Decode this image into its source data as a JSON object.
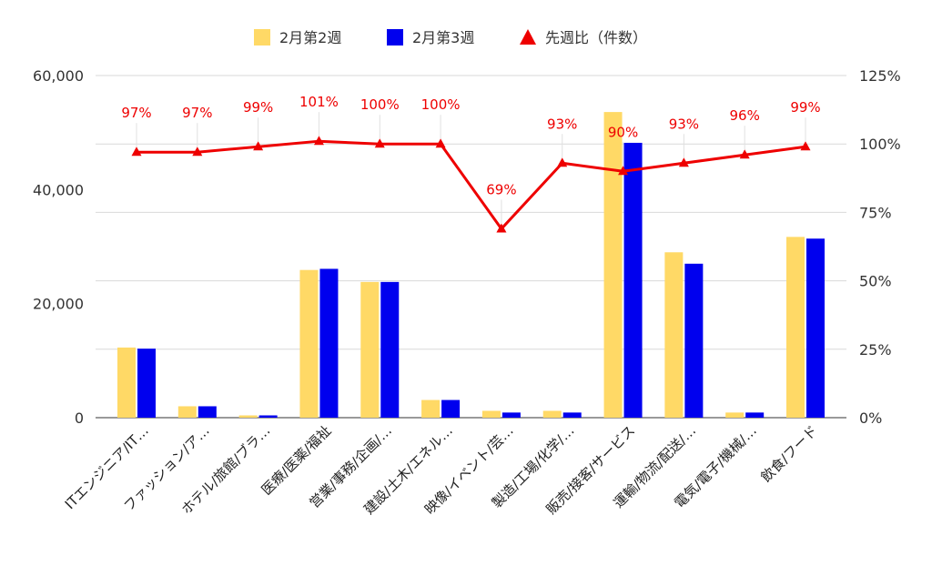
{
  "chart_data": {
    "type": "bar",
    "categories": [
      "ITエンジニア/IT…",
      "ファッション/ア…",
      "ホテル/旅館/ブラ…",
      "医療/医薬/福祉",
      "営業/事務/企画/…",
      "建設/土木/エネル…",
      "映像/イベント/芸…",
      "製造/工場/化学/…",
      "販売/接客/サービス",
      "運輸/物流/配送/…",
      "電気/電子/機械/…",
      "飲食/フード"
    ],
    "series": [
      {
        "name": "2月第2週",
        "type": "bar",
        "axis": "left",
        "color": "#FFD966",
        "values": [
          12300,
          2000,
          400,
          25900,
          23800,
          3100,
          1200,
          1200,
          53600,
          29000,
          900,
          31700
        ]
      },
      {
        "name": "2月第3週",
        "type": "bar",
        "axis": "left",
        "color": "#0000EE",
        "values": [
          12100,
          2000,
          400,
          26100,
          23800,
          3100,
          900,
          900,
          48200,
          27000,
          900,
          31400
        ]
      },
      {
        "name": "先週比（件数）",
        "type": "line",
        "axis": "right",
        "color": "#EE0000",
        "values": [
          97,
          97,
          99,
          101,
          100,
          100,
          69,
          93,
          90,
          93,
          96,
          99
        ],
        "labels": [
          "97%",
          "97%",
          "99%",
          "101%",
          "100%",
          "100%",
          "69%",
          "93%",
          "90%",
          "93%",
          "96%",
          "99%"
        ]
      }
    ],
    "y_left": {
      "min": 0,
      "max": 60000,
      "ticks": [
        "0",
        "20,000",
        "40,000",
        "60,000"
      ],
      "tick_values": [
        0,
        20000,
        40000,
        60000
      ]
    },
    "y_right": {
      "min": 0,
      "max": 125,
      "ticks": [
        "0%",
        "25%",
        "50%",
        "75%",
        "100%",
        "125%"
      ],
      "tick_values": [
        0,
        25,
        50,
        75,
        100,
        125
      ]
    },
    "grid": true,
    "legend_position": "top-center"
  }
}
